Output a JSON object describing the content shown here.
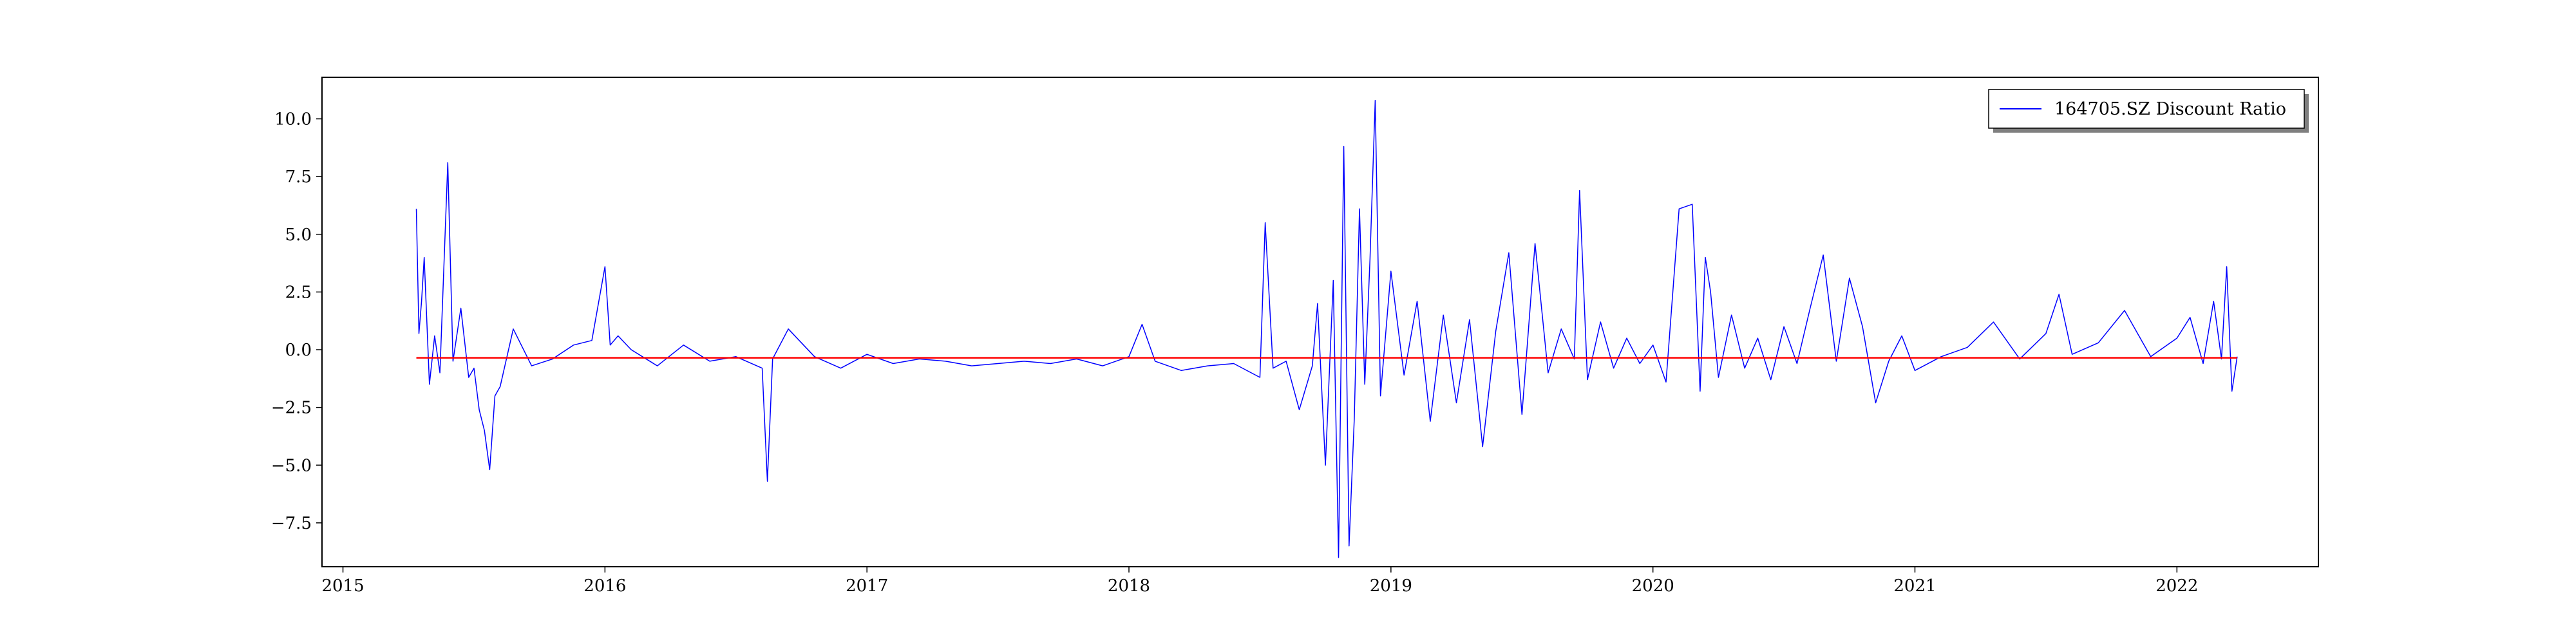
{
  "chart_data": {
    "type": "line",
    "title": "",
    "xlabel": "",
    "ylabel": "",
    "xlim": [
      2014.92,
      2022.54
    ],
    "ylim": [
      -9.4,
      11.8
    ],
    "x_ticks": [
      2015,
      2016,
      2017,
      2018,
      2019,
      2020,
      2021,
      2022
    ],
    "y_ticks": [
      -7.5,
      -5.0,
      -2.5,
      0.0,
      2.5,
      5.0,
      7.5,
      10.0
    ],
    "y_tick_labels": [
      "−7.5",
      "−5.0",
      "−2.5",
      "0.0",
      "2.5",
      "5.0",
      "7.5",
      "10.0"
    ],
    "x_tick_labels": [
      "2015",
      "2016",
      "2017",
      "2018",
      "2019",
      "2020",
      "2021",
      "2022"
    ],
    "grid": false,
    "legend_position": "top-right",
    "series": [
      {
        "name": "164705.SZ Discount Ratio",
        "color": "#0000ff",
        "x": [
          2015.28,
          2015.29,
          2015.3,
          2015.31,
          2015.33,
          2015.35,
          2015.37,
          2015.4,
          2015.42,
          2015.45,
          2015.48,
          2015.5,
          2015.52,
          2015.54,
          2015.56,
          2015.58,
          2015.6,
          2015.65,
          2015.72,
          2015.8,
          2015.88,
          2015.95,
          2016.0,
          2016.02,
          2016.05,
          2016.1,
          2016.2,
          2016.3,
          2016.4,
          2016.5,
          2016.6,
          2016.62,
          2016.64,
          2016.7,
          2016.8,
          2016.9,
          2017.0,
          2017.1,
          2017.2,
          2017.3,
          2017.4,
          2017.5,
          2017.6,
          2017.7,
          2017.8,
          2017.9,
          2018.0,
          2018.05,
          2018.1,
          2018.2,
          2018.3,
          2018.4,
          2018.5,
          2018.52,
          2018.55,
          2018.6,
          2018.65,
          2018.7,
          2018.72,
          2018.75,
          2018.78,
          2018.8,
          2018.82,
          2018.84,
          2018.86,
          2018.88,
          2018.9,
          2018.92,
          2018.94,
          2018.96,
          2019.0,
          2019.05,
          2019.1,
          2019.15,
          2019.2,
          2019.25,
          2019.3,
          2019.35,
          2019.4,
          2019.45,
          2019.5,
          2019.55,
          2019.6,
          2019.65,
          2019.7,
          2019.72,
          2019.75,
          2019.8,
          2019.85,
          2019.9,
          2019.95,
          2020.0,
          2020.05,
          2020.1,
          2020.15,
          2020.18,
          2020.2,
          2020.22,
          2020.25,
          2020.3,
          2020.35,
          2020.4,
          2020.45,
          2020.5,
          2020.55,
          2020.6,
          2020.65,
          2020.7,
          2020.75,
          2020.8,
          2020.85,
          2020.9,
          2020.95,
          2021.0,
          2021.1,
          2021.2,
          2021.3,
          2021.4,
          2021.5,
          2021.55,
          2021.6,
          2021.7,
          2021.8,
          2021.9,
          2022.0,
          2022.05,
          2022.1,
          2022.14,
          2022.17,
          2022.19,
          2022.21,
          2022.23
        ],
        "y": [
          6.1,
          0.7,
          2.1,
          4.0,
          -1.5,
          0.6,
          -1.0,
          8.1,
          -0.5,
          1.8,
          -1.2,
          -0.8,
          -2.6,
          -3.5,
          -5.2,
          -2.0,
          -1.6,
          0.9,
          -0.7,
          -0.4,
          0.2,
          0.4,
          3.6,
          0.2,
          0.6,
          0.0,
          -0.7,
          0.2,
          -0.5,
          -0.3,
          -0.8,
          -5.7,
          -0.4,
          0.9,
          -0.3,
          -0.8,
          -0.2,
          -0.6,
          -0.4,
          -0.5,
          -0.7,
          -0.6,
          -0.5,
          -0.6,
          -0.4,
          -0.7,
          -0.3,
          1.1,
          -0.5,
          -0.9,
          -0.7,
          -0.6,
          -1.2,
          5.5,
          -0.8,
          -0.5,
          -2.6,
          -0.7,
          2.0,
          -5.0,
          3.0,
          -9.0,
          8.8,
          -8.5,
          -3.0,
          6.1,
          -1.5,
          3.9,
          10.8,
          -2.0,
          3.4,
          -1.1,
          2.1,
          -3.1,
          1.5,
          -2.3,
          1.3,
          -4.2,
          0.8,
          4.2,
          -2.8,
          4.6,
          -1.0,
          0.9,
          -0.4,
          6.9,
          -1.3,
          1.2,
          -0.8,
          0.5,
          -0.6,
          0.2,
          -1.4,
          6.1,
          6.3,
          -1.8,
          4.0,
          2.5,
          -1.2,
          1.5,
          -0.8,
          0.5,
          -1.3,
          1.0,
          -0.6,
          1.8,
          4.1,
          -0.5,
          3.1,
          1.0,
          -2.3,
          -0.5,
          0.6,
          -0.9,
          -0.3,
          0.1,
          1.2,
          -0.4,
          0.7,
          2.4,
          -0.2,
          0.3,
          1.7,
          -0.3,
          0.5,
          1.4,
          -0.6,
          2.1,
          -0.4,
          3.6,
          -1.8,
          -0.3
        ]
      },
      {
        "name": "",
        "color": "#ff0000",
        "x": [
          2015.28,
          2022.23
        ],
        "y": [
          -0.35,
          -0.35
        ]
      }
    ]
  }
}
